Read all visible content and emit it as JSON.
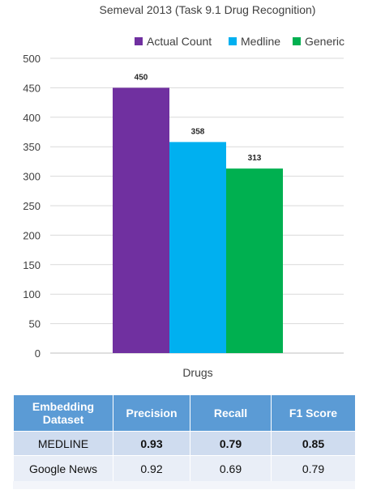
{
  "chart_data": {
    "type": "bar",
    "title": "Semeval 2013 (Task 9.1 Drug Recognition)",
    "categories": [
      "Drugs"
    ],
    "series": [
      {
        "name": "Actual Count",
        "values": [
          450
        ],
        "color": "#7030a0"
      },
      {
        "name": "Medline",
        "values": [
          358
        ],
        "color": "#00b0f0"
      },
      {
        "name": "Generic",
        "values": [
          313
        ],
        "color": "#00b050"
      }
    ],
    "ylim": [
      0,
      500
    ],
    "yticks": [
      0,
      50,
      100,
      150,
      200,
      250,
      300,
      350,
      400,
      450,
      500
    ],
    "grid": true,
    "legend": "top-right"
  },
  "table": {
    "headers": [
      "Embedding Dataset",
      "Precision",
      "Recall",
      "F1 Score"
    ],
    "rows": [
      {
        "dataset": "MEDLINE",
        "precision": "0.93",
        "recall": "0.79",
        "f1": "0.85"
      },
      {
        "dataset": "Google News",
        "precision": "0.92",
        "recall": "0.69",
        "f1": "0.79"
      }
    ]
  }
}
